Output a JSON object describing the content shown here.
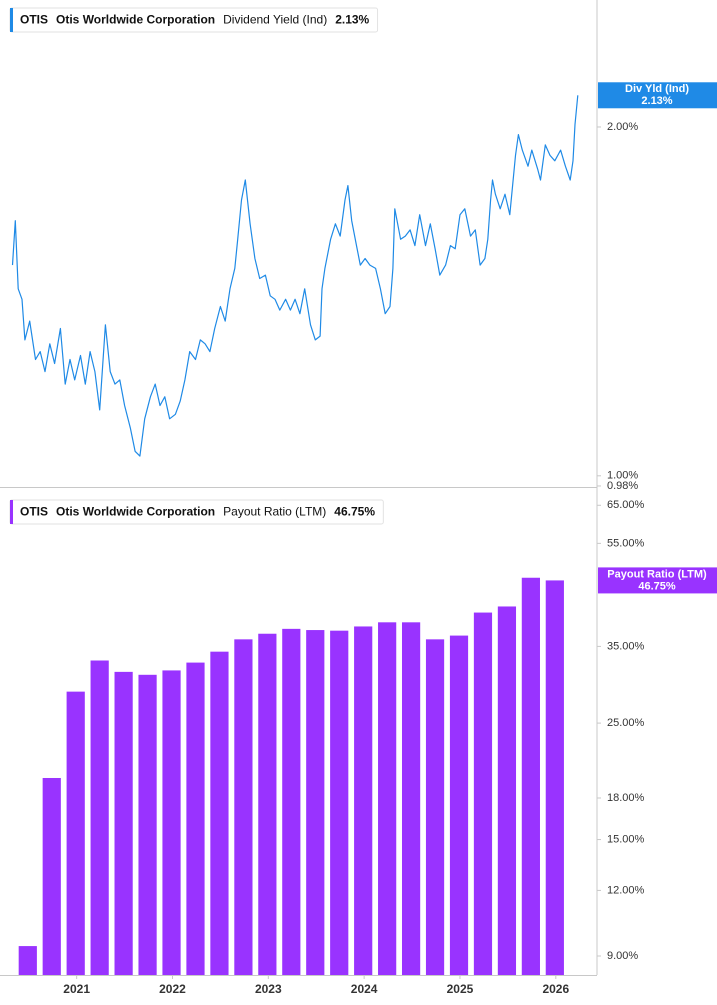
{
  "chart_data": [
    {
      "type": "line",
      "ticker": "OTIS",
      "company": "Otis Worldwide Corporation",
      "metric": "Dividend Yield (Ind)",
      "tag_title": "Div Yld (Ind)",
      "current": {
        "value": 2.13,
        "label": "2.13%"
      },
      "color": "#1f8ae6",
      "log_scale": true,
      "xlim": [
        2020.2,
        2026.43
      ],
      "ylim": [
        0.978,
        2.574
      ],
      "yticks": [
        {
          "value": 0.98,
          "label": "0.98%"
        },
        {
          "value": 1,
          "label": "1.00%"
        },
        {
          "value": 2,
          "label": "2.00%"
        }
      ],
      "x": [
        2020.33,
        2020.36,
        2020.39,
        2020.43,
        2020.46,
        2020.51,
        2020.57,
        2020.62,
        2020.67,
        2020.72,
        2020.77,
        2020.83,
        2020.88,
        2020.93,
        2020.98,
        2021.04,
        2021.09,
        2021.14,
        2021.19,
        2021.24,
        2021.3,
        2021.35,
        2021.4,
        2021.45,
        2021.5,
        2021.56,
        2021.61,
        2021.66,
        2021.71,
        2021.77,
        2021.82,
        2021.87,
        2021.92,
        2021.97,
        2022.03,
        2022.08,
        2022.13,
        2022.18,
        2022.24,
        2022.29,
        2022.34,
        2022.39,
        2022.44,
        2022.5,
        2022.55,
        2022.6,
        2022.65,
        2022.68,
        2022.72,
        2022.76,
        2022.81,
        2022.86,
        2022.91,
        2022.97,
        2023.02,
        2023.07,
        2023.12,
        2023.18,
        2023.23,
        2023.28,
        2023.33,
        2023.38,
        2023.44,
        2023.49,
        2023.54,
        2023.56,
        2023.59,
        2023.65,
        2023.7,
        2023.75,
        2023.8,
        2023.83,
        2023.87,
        2023.92,
        2023.96,
        2024.01,
        2024.06,
        2024.12,
        2024.17,
        2024.22,
        2024.27,
        2024.3,
        2024.32,
        2024.38,
        2024.43,
        2024.48,
        2024.53,
        2024.58,
        2024.64,
        2024.69,
        2024.74,
        2024.79,
        2024.85,
        2024.9,
        2024.95,
        2025.0,
        2025.05,
        2025.11,
        2025.16,
        2025.21,
        2025.26,
        2025.29,
        2025.32,
        2025.34,
        2025.37,
        2025.42,
        2025.47,
        2025.52,
        2025.58,
        2025.61,
        2025.65,
        2025.71,
        2025.75,
        2025.81,
        2025.84,
        2025.89,
        2025.94,
        2025.99,
        2026.05,
        2026.1,
        2026.15,
        2026.18,
        2026.2,
        2026.23
      ],
      "values": [
        1.52,
        1.66,
        1.45,
        1.42,
        1.31,
        1.36,
        1.26,
        1.28,
        1.23,
        1.3,
        1.25,
        1.34,
        1.2,
        1.26,
        1.21,
        1.27,
        1.2,
        1.28,
        1.23,
        1.14,
        1.35,
        1.23,
        1.2,
        1.21,
        1.15,
        1.1,
        1.05,
        1.04,
        1.12,
        1.17,
        1.2,
        1.15,
        1.17,
        1.12,
        1.13,
        1.16,
        1.21,
        1.28,
        1.26,
        1.31,
        1.3,
        1.28,
        1.34,
        1.4,
        1.36,
        1.45,
        1.51,
        1.6,
        1.73,
        1.8,
        1.65,
        1.54,
        1.48,
        1.49,
        1.43,
        1.42,
        1.39,
        1.42,
        1.39,
        1.42,
        1.38,
        1.45,
        1.35,
        1.31,
        1.32,
        1.45,
        1.51,
        1.6,
        1.65,
        1.61,
        1.73,
        1.78,
        1.66,
        1.58,
        1.52,
        1.54,
        1.52,
        1.51,
        1.45,
        1.38,
        1.4,
        1.51,
        1.7,
        1.6,
        1.61,
        1.63,
        1.58,
        1.68,
        1.58,
        1.65,
        1.57,
        1.49,
        1.52,
        1.58,
        1.57,
        1.68,
        1.7,
        1.61,
        1.63,
        1.52,
        1.54,
        1.6,
        1.73,
        1.8,
        1.75,
        1.7,
        1.75,
        1.68,
        1.89,
        1.97,
        1.91,
        1.85,
        1.91,
        1.84,
        1.8,
        1.93,
        1.89,
        1.87,
        1.91,
        1.85,
        1.8,
        1.87,
        2.01,
        2.13
      ]
    },
    {
      "type": "bar",
      "ticker": "OTIS",
      "company": "Otis Worldwide Corporation",
      "metric": "Payout Ratio (LTM)",
      "current": {
        "value": 46.75,
        "label": "46.75%"
      },
      "color": "#9933ff",
      "log_scale": true,
      "xlim": [
        2020.2,
        2026.43
      ],
      "ylim": [
        8.28,
        68.9
      ],
      "xticks": [
        2021,
        2022,
        2023,
        2024,
        2025,
        2026
      ],
      "yticks": [
        {
          "value": 9,
          "label": "9.00%"
        },
        {
          "value": 12,
          "label": "12.00%"
        },
        {
          "value": 15,
          "label": "15.00%"
        },
        {
          "value": 18,
          "label": "18.00%"
        },
        {
          "value": 25,
          "label": "25.00%"
        },
        {
          "value": 35,
          "label": "35.00%"
        },
        {
          "value": 55,
          "label": "55.00%"
        },
        {
          "value": 65,
          "label": "65.00%"
        }
      ],
      "x": [
        2020.49,
        2020.74,
        2020.99,
        2021.24,
        2021.49,
        2021.74,
        2021.99,
        2022.24,
        2022.49,
        2022.74,
        2022.99,
        2023.24,
        2023.49,
        2023.74,
        2023.99,
        2024.24,
        2024.49,
        2024.74,
        2024.99,
        2025.24,
        2025.49,
        2025.74,
        2025.99
      ],
      "values": [
        9.4,
        19.65,
        28.7,
        32.9,
        31.3,
        30.9,
        31.5,
        32.6,
        34.2,
        36.1,
        37.0,
        37.8,
        37.6,
        37.5,
        38.2,
        38.9,
        38.9,
        36.1,
        36.7,
        40.6,
        41.7,
        47.3,
        46.75
      ]
    }
  ]
}
